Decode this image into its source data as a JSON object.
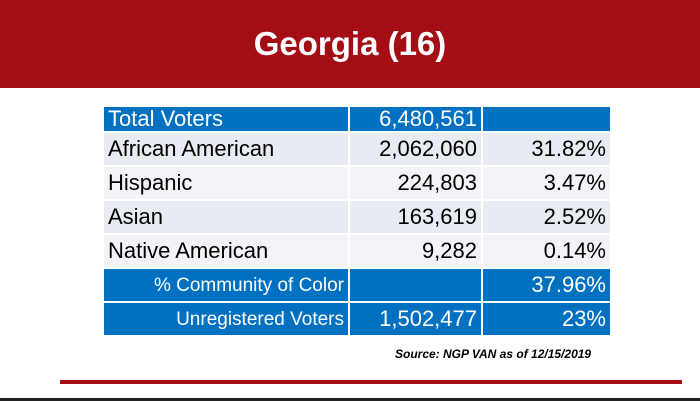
{
  "banner": {
    "title": "Georgia (16)",
    "color": "#a50d14"
  },
  "table": {
    "accent_color": "#0070c0",
    "rows": [
      {
        "label": "Total Voters",
        "count": "6,480,561",
        "percent": ""
      },
      {
        "label": "African American",
        "count": "2,062,060",
        "percent": "31.82%"
      },
      {
        "label": "Hispanic",
        "count": "224,803",
        "percent": "3.47%"
      },
      {
        "label": "Asian",
        "count": "163,619",
        "percent": "2.52%"
      },
      {
        "label": "Native American",
        "count": "9,282",
        "percent": "0.14%"
      },
      {
        "label": "% Community of Color",
        "count": "",
        "percent": "37.96%"
      },
      {
        "label": "Unregistered Voters",
        "count": "1,502,477",
        "percent": "23%"
      }
    ]
  },
  "source": "Source: NGP VAN as of 12/15/2019"
}
